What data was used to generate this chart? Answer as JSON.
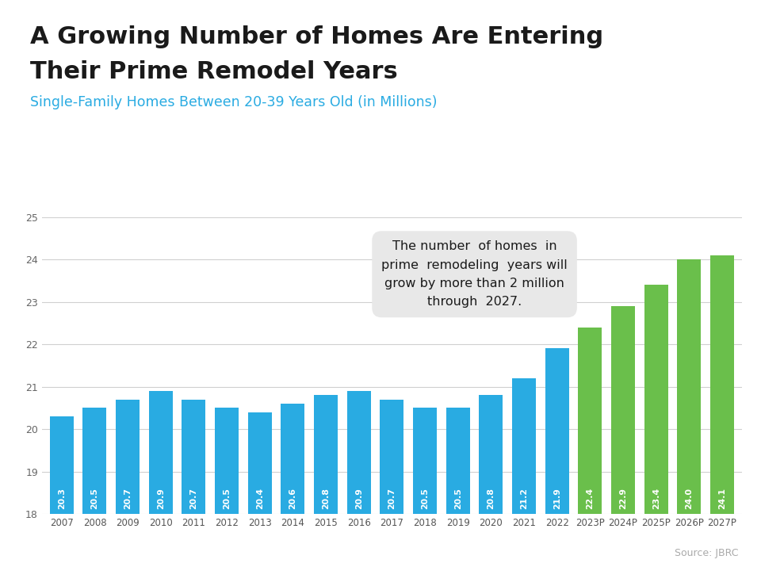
{
  "title_line1": "A Growing Number of Homes Are Entering",
  "title_line2": "Their Prime Remodel Years",
  "subtitle": "Single-Family Homes Between 20-39 Years Old (in Millions)",
  "source": "Source: JBRC",
  "categories": [
    "2007",
    "2008",
    "2009",
    "2010",
    "2011",
    "2012",
    "2013",
    "2014",
    "2015",
    "2016",
    "2017",
    "2018",
    "2019",
    "2020",
    "2021",
    "2022",
    "2023P",
    "2024P",
    "2025P",
    "2026P",
    "2027P"
  ],
  "values": [
    20.3,
    20.5,
    20.7,
    20.9,
    20.7,
    20.5,
    20.4,
    20.6,
    20.8,
    20.9,
    20.7,
    20.5,
    20.5,
    20.8,
    21.2,
    21.9,
    22.4,
    22.9,
    23.4,
    24.0,
    24.1
  ],
  "bar_colors_blue": [
    "2007",
    "2008",
    "2009",
    "2010",
    "2011",
    "2012",
    "2013",
    "2014",
    "2015",
    "2016",
    "2017",
    "2018",
    "2019",
    "2020",
    "2021",
    "2022"
  ],
  "bar_colors_green": [
    "2023P",
    "2024P",
    "2025P",
    "2026P",
    "2027P"
  ],
  "blue_color": "#29ABE2",
  "green_color": "#6ABF4B",
  "arrow_color": "#6ABF4B",
  "ylim": [
    18,
    25
  ],
  "yticks": [
    18,
    19,
    20,
    21,
    22,
    23,
    24,
    25
  ],
  "annotation_text": "The number  of homes  in\nprime  remodeling  years will\ngrow by more than 2 million\nthrough  2027.",
  "background_color": "#ffffff",
  "title_color": "#1a1a1a",
  "subtitle_color": "#29ABE2",
  "grid_color": "#d0d0d0",
  "accent_bar_color": "#00AEEF"
}
